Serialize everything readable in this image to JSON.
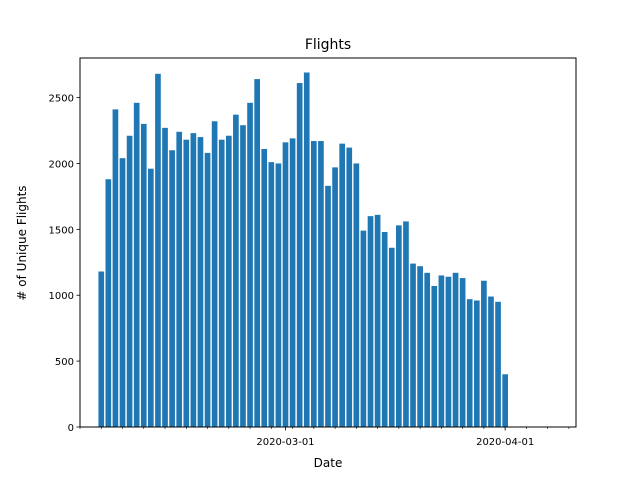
{
  "chart_data": {
    "type": "bar",
    "title": "Flights",
    "xlabel": "Date",
    "ylabel": "# of Unique Flights",
    "ylim": [
      0,
      2800
    ],
    "yticks": [
      0,
      500,
      1000,
      1500,
      2000,
      2500
    ],
    "xlim": [
      "2020-02-01",
      "2020-04-11"
    ],
    "xtick_labels": [
      "2020-03-01",
      "2020-04-01"
    ],
    "color": "#1f77b4",
    "grid": false,
    "start_date": "2020-02-04",
    "values": [
      1180,
      1880,
      2410,
      2040,
      2210,
      2460,
      2300,
      1960,
      2680,
      2270,
      2100,
      2240,
      2180,
      2230,
      2200,
      2080,
      2320,
      2180,
      2210,
      2370,
      2290,
      2460,
      2640,
      2110,
      2010,
      2000,
      2160,
      2190,
      2610,
      2690,
      2170,
      2170,
      1830,
      1970,
      2150,
      2120,
      2000,
      1490,
      1600,
      1610,
      1480,
      1360,
      1530,
      1560,
      1240,
      1220,
      1170,
      1070,
      1150,
      1140,
      1170,
      1130,
      970,
      960,
      1110,
      990,
      950,
      400
    ]
  }
}
